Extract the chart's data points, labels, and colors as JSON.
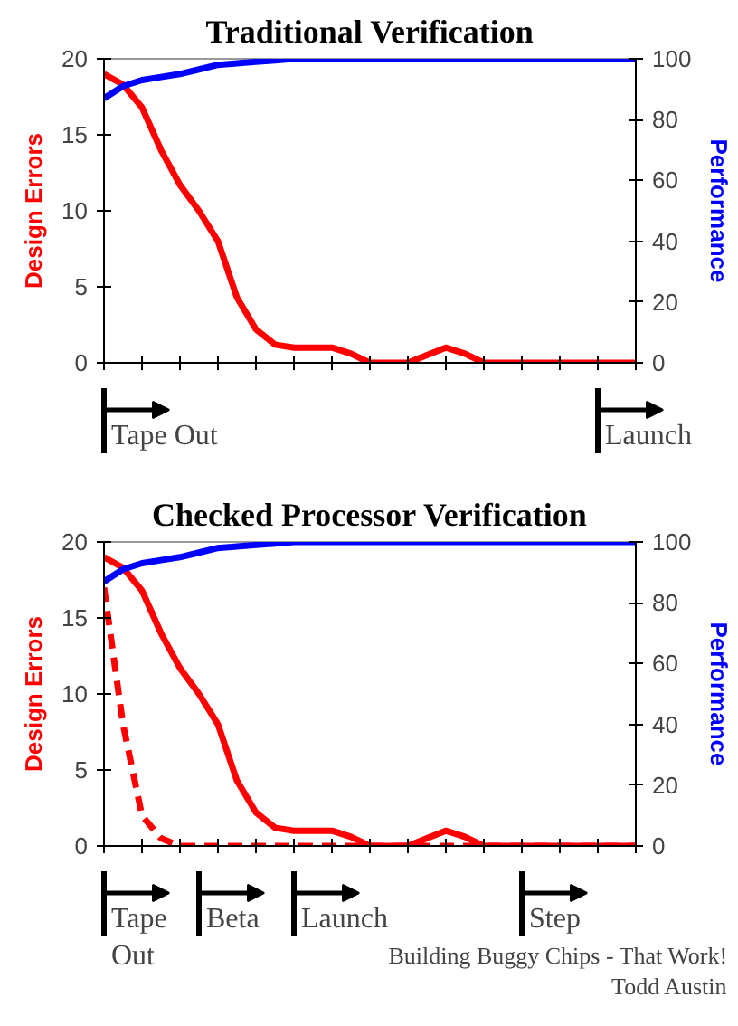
{
  "chart_data": [
    {
      "type": "line",
      "title": "Traditional Verification",
      "ylabel": "Design Errors",
      "y2label": "Performance",
      "categories": [
        null,
        null,
        null,
        null,
        null,
        null,
        null,
        null,
        null,
        null,
        null,
        null,
        null,
        null,
        null,
        null,
        null,
        null,
        null,
        null,
        null,
        null,
        null,
        null,
        null,
        null,
        null,
        null,
        null
      ],
      "ylim": [
        0,
        20
      ],
      "yticks": [
        0,
        5,
        10,
        15,
        20
      ],
      "y2lim": [
        0,
        100
      ],
      "y2ticks": [
        0,
        20,
        40,
        60,
        80,
        100
      ],
      "tick_labels": "y",
      "line_style": "solid",
      "series": [
        {
          "color": "#ff0000",
          "values": [
            19,
            18.3,
            16.8,
            14,
            11.7,
            10,
            8,
            4.3,
            2.2,
            1.2,
            1,
            1,
            1,
            0.6,
            0,
            0,
            0,
            0.5,
            1,
            0.6,
            0,
            0,
            0,
            0,
            0,
            0,
            0,
            0,
            0
          ]
        },
        {
          "color": "#0000ff",
          "axis": "y2",
          "values": [
            87,
            91,
            93,
            94,
            95,
            96.5,
            98,
            98.5,
            99,
            99.5,
            100,
            100,
            100,
            100,
            100,
            100,
            100,
            100,
            100,
            100,
            100,
            100,
            100,
            100,
            100,
            100,
            100,
            100,
            100
          ]
        }
      ],
      "annotations": [
        "Tape Out",
        "Launch"
      ]
    },
    {
      "type": "line",
      "title": "Checked Processor Verification",
      "ylabel": "Design Errors",
      "y2label": "Performance",
      "categories": [
        null,
        null,
        null,
        null,
        null,
        null,
        null,
        null,
        null,
        null,
        null,
        null,
        null,
        null,
        null,
        null,
        null,
        null,
        null,
        null,
        null,
        null,
        null,
        null,
        null,
        null,
        null,
        null,
        null
      ],
      "ylim": [
        0,
        20
      ],
      "yticks": [
        0,
        5,
        10,
        15,
        20
      ],
      "y2lim": [
        0,
        100
      ],
      "y2ticks": [
        0,
        20,
        40,
        60,
        80,
        100
      ],
      "tick_labels": "y",
      "line_style": "solid",
      "series": [
        {
          "color": "#ff0000",
          "values": [
            19,
            18.3,
            16.8,
            14,
            11.7,
            10,
            8,
            4.3,
            2.2,
            1.2,
            1,
            1,
            1,
            0.6,
            0,
            0,
            0,
            0.5,
            1,
            0.6,
            0,
            0,
            0,
            0,
            0,
            0,
            0,
            0,
            0
          ]
        },
        {
          "color": "#ff0000",
          "line_style": "dashed",
          "values": [
            17,
            8,
            2,
            0.5,
            0,
            0,
            0,
            0,
            0,
            0,
            0,
            0,
            0,
            0,
            0,
            0,
            0,
            0,
            0,
            0,
            0,
            0,
            0,
            0,
            0,
            0,
            0,
            0,
            0
          ]
        },
        {
          "color": "#0000ff",
          "axis": "y2",
          "values": [
            87,
            91,
            93,
            94,
            95,
            96.5,
            98,
            98.5,
            99,
            99.5,
            100,
            100,
            100,
            100,
            100,
            100,
            100,
            100,
            100,
            100,
            100,
            100,
            100,
            100,
            100,
            100,
            100,
            100,
            100
          ]
        }
      ],
      "annotations": [
        "Tape Out",
        "Beta",
        "Launch",
        "Step",
        "Building Buggy Chips - That Work!",
        "Todd Austin"
      ]
    }
  ]
}
